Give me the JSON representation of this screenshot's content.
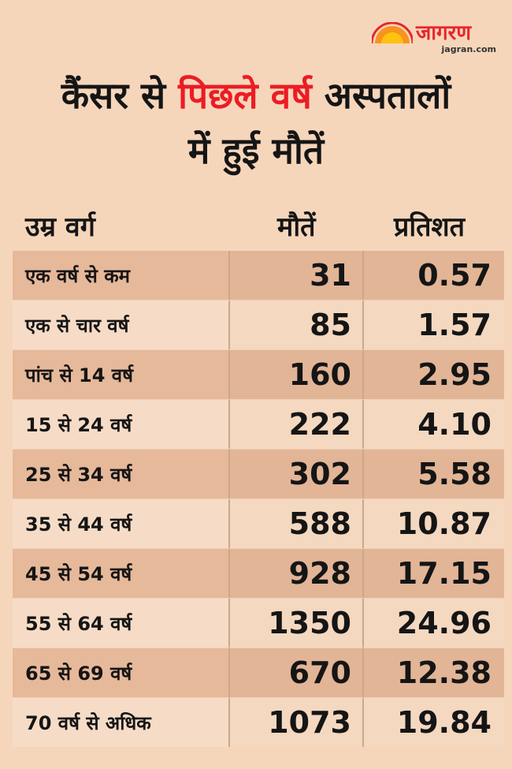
{
  "logo": {
    "name": "जागरण",
    "url": "jagran.com",
    "colors": {
      "red": "#e8262b",
      "orange": "#f7941d",
      "yellow": "#ffc20e"
    }
  },
  "title": {
    "part1": "कैंसर से ",
    "highlight": "पिछले वर्ष",
    "part2": " अस्पतालों",
    "line2": "में हुई मौतें",
    "highlight_color": "#ec1c24"
  },
  "table": {
    "headers": {
      "age": "उम्र वर्ग",
      "deaths": "मौतें",
      "percent": "प्रतिशत"
    },
    "rows": [
      {
        "age": "एक वर्ष से कम",
        "deaths": "31",
        "percent": "0.57"
      },
      {
        "age": "एक से चार वर्ष",
        "deaths": "85",
        "percent": "1.57"
      },
      {
        "age": "पांच से 14 वर्ष",
        "deaths": "160",
        "percent": "2.95"
      },
      {
        "age": "15 से 24 वर्ष",
        "deaths": "222",
        "percent": "4.10"
      },
      {
        "age": "25 से 34 वर्ष",
        "deaths": "302",
        "percent": "5.58"
      },
      {
        "age": "35 से 44 वर्ष",
        "deaths": "588",
        "percent": "10.87"
      },
      {
        "age": "45 से 54 वर्ष",
        "deaths": "928",
        "percent": "17.15"
      },
      {
        "age": "55 से 64 वर्ष",
        "deaths": "1350",
        "percent": "24.96"
      },
      {
        "age": "65 से 69 वर्ष",
        "deaths": "670",
        "percent": "12.38"
      },
      {
        "age": "70 वर्ष से अधिक",
        "deaths": "1073",
        "percent": "19.84"
      }
    ]
  }
}
